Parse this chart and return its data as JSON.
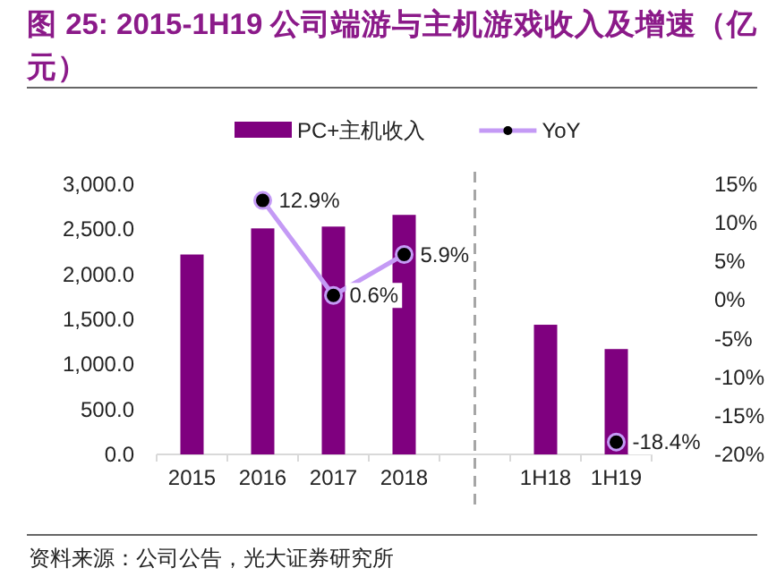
{
  "chart_data": {
    "type": "bar",
    "title": "图 25: 2015-1H19 公司端游与主机游戏收入及增速（亿元）",
    "categories": [
      "2015",
      "2016",
      "2017",
      "2018",
      null,
      "1H18",
      "1H19"
    ],
    "series": [
      {
        "name": "PC+主机收入",
        "color": "#7f007f",
        "values": [
          2220,
          2510,
          2530,
          2660,
          null,
          1440,
          1170
        ]
      },
      {
        "name": "YoY",
        "type": "line",
        "axis": "y2",
        "color": "#c49af5",
        "marker": "circle",
        "values": [
          null,
          12.9,
          0.6,
          5.9,
          null,
          null,
          -18.4
        ],
        "value_labels": [
          null,
          "12.9%",
          "0.6%",
          "5.9%",
          null,
          null,
          "-18.4%"
        ]
      }
    ],
    "ylim": [
      0,
      3000
    ],
    "yticks": [
      {
        "value": 0,
        "label": "0.0"
      },
      {
        "value": 500,
        "label": "500.0"
      },
      {
        "value": 1000,
        "label": "1,000.0"
      },
      {
        "value": 1500,
        "label": "1,500.0"
      },
      {
        "value": 2000,
        "label": "2,000.0"
      },
      {
        "value": 2500,
        "label": "2,500.0"
      },
      {
        "value": 3000,
        "label": "3,000.0"
      }
    ],
    "y2lim": [
      -20,
      15
    ],
    "y2ticks": [
      {
        "value": -20,
        "label": "-20%"
      },
      {
        "value": -15,
        "label": "-15%"
      },
      {
        "value": -10,
        "label": "-10%"
      },
      {
        "value": -5,
        "label": "-5%"
      },
      {
        "value": 0,
        "label": "0%"
      },
      {
        "value": 5,
        "label": "5%"
      },
      {
        "value": 10,
        "label": "10%"
      },
      {
        "value": 15,
        "label": "15%"
      }
    ],
    "ref_lines": [
      {
        "axis": "x",
        "value": null,
        "line_style": "dashed",
        "color": "#a6a6a6"
      }
    ],
    "legend": "top",
    "annotations": [
      "资料来源：公司公告，光大证券研究所"
    ]
  }
}
